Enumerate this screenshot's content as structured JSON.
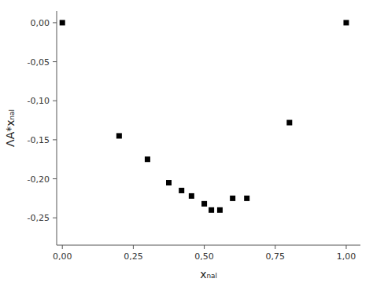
{
  "chart_data": {
    "type": "scatter",
    "x": [
      0.0,
      0.2,
      0.3,
      0.375,
      0.42,
      0.455,
      0.5,
      0.525,
      0.555,
      0.6,
      0.65,
      0.8,
      1.0
    ],
    "y": [
      0.0,
      -0.145,
      -0.175,
      -0.205,
      -0.215,
      -0.222,
      -0.232,
      -0.24,
      -0.24,
      -0.225,
      -0.225,
      -0.128,
      0.0
    ],
    "marker": "square",
    "color": "#000000",
    "xlim": [
      -0.02,
      1.05
    ],
    "ylim": [
      -0.285,
      0.015
    ],
    "xticks": [
      {
        "value": 0.0,
        "label": "0,00"
      },
      {
        "value": 0.25,
        "label": "0,25"
      },
      {
        "value": 0.5,
        "label": "0,50"
      },
      {
        "value": 0.75,
        "label": "0,75"
      },
      {
        "value": 1.0,
        "label": "1,00"
      }
    ],
    "yticks": [
      {
        "value": 0.0,
        "label": "0,00"
      },
      {
        "value": -0.05,
        "label": "-0,05"
      },
      {
        "value": -0.1,
        "label": "-0,10"
      },
      {
        "value": -0.15,
        "label": "-0,15"
      },
      {
        "value": -0.2,
        "label": "-0,20"
      },
      {
        "value": -0.25,
        "label": "-0,25"
      }
    ],
    "xlabel": "xₙₐₗ",
    "ylabel": "ΛA*xₙₐₗ",
    "grid": false
  }
}
